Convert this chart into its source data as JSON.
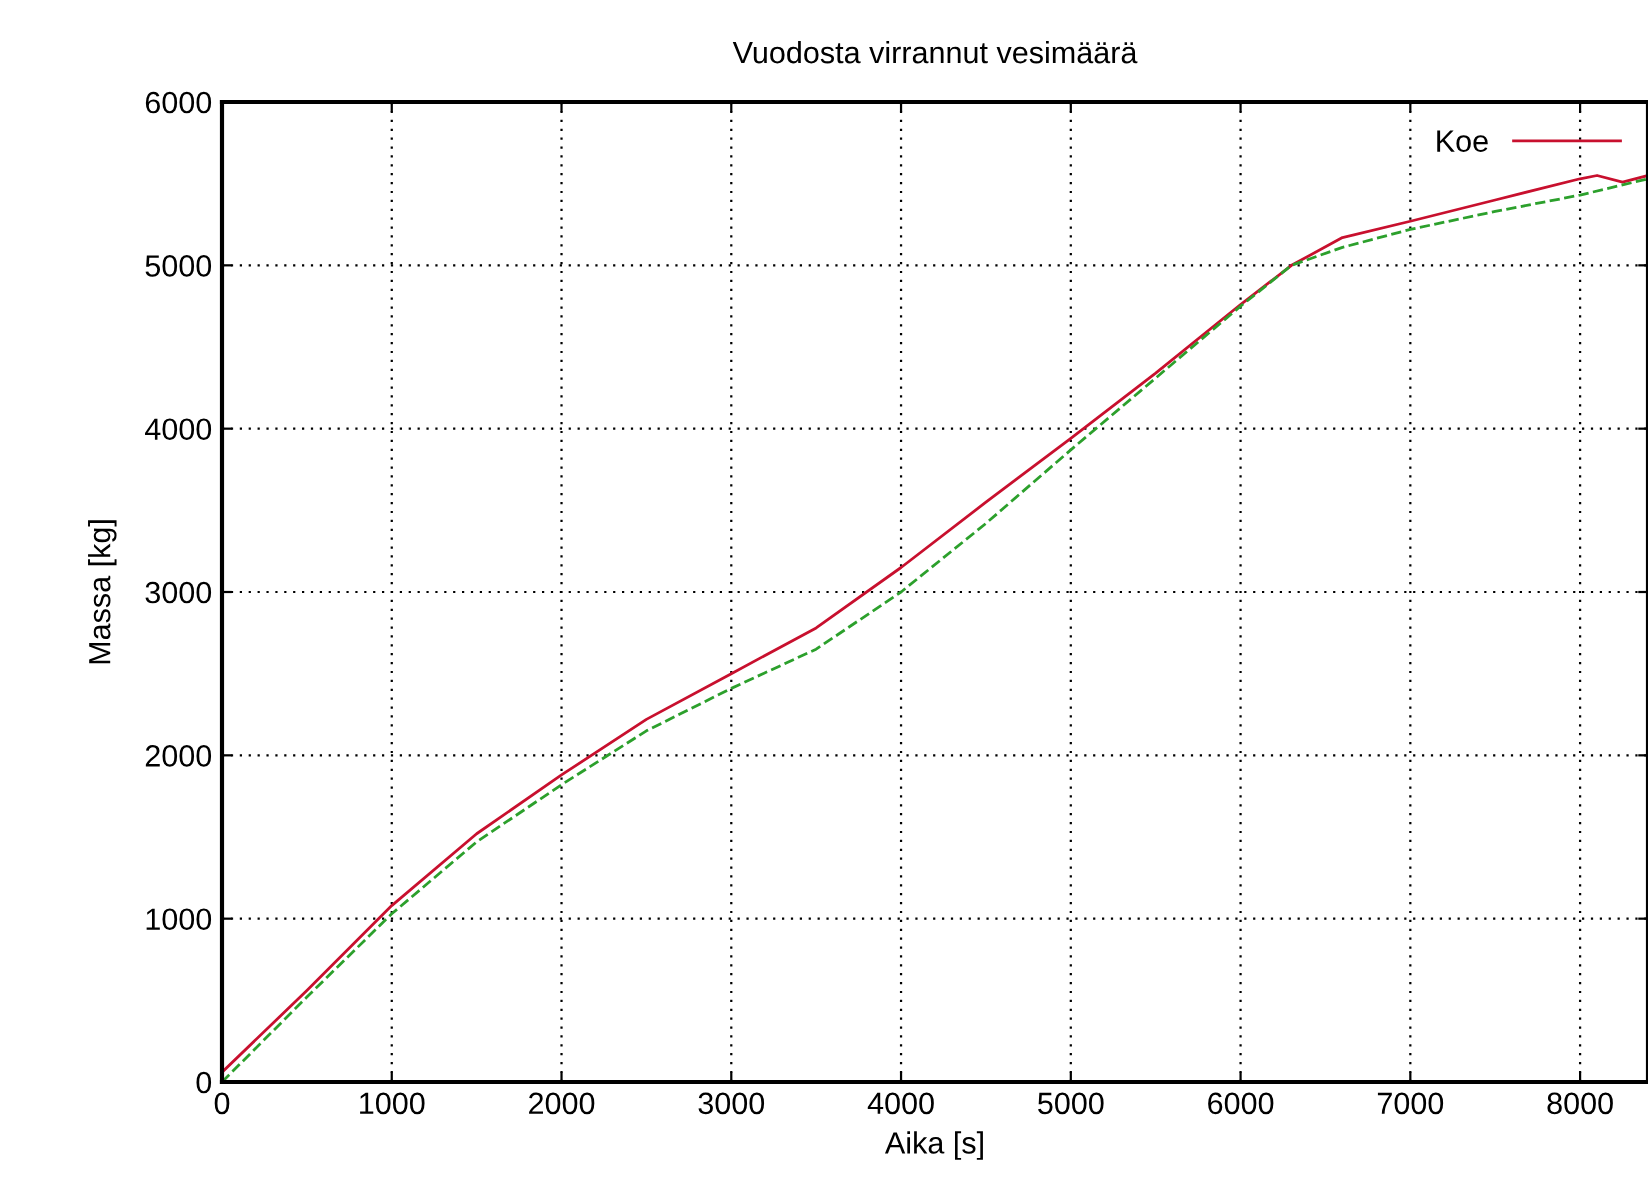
{
  "chart_data": {
    "type": "line",
    "title": "Vuodosta virrannut vesimäärä",
    "xlabel": "Aika [s]",
    "ylabel": "Massa [kg]",
    "xlim": [
      0,
      8400
    ],
    "xticks": [
      0,
      1000,
      2000,
      3000,
      4000,
      5000,
      6000,
      7000,
      8000
    ],
    "ylim": [
      0,
      6000
    ],
    "yticks": [
      0,
      1000,
      2000,
      3000,
      4000,
      5000,
      6000
    ],
    "grid": true,
    "legend": "top right",
    "series": [
      {
        "name": "Koe",
        "color": "#c8102e",
        "line_style": "solid",
        "x": [
          0,
          500,
          1000,
          1500,
          2000,
          2500,
          3000,
          3500,
          4000,
          4500,
          5000,
          5500,
          6000,
          6300,
          6600,
          7000,
          7500,
          8000,
          8100,
          8250,
          8400
        ],
        "values": [
          60,
          560,
          1080,
          1520,
          1880,
          2220,
          2500,
          2780,
          3150,
          3550,
          3940,
          4340,
          4760,
          5000,
          5170,
          5270,
          5400,
          5530,
          5550,
          5510,
          5550
        ]
      },
      {
        "color": "#2ca02c",
        "line_style": "dashed",
        "x": [
          0,
          500,
          1000,
          1500,
          2000,
          2500,
          3000,
          3500,
          4000,
          4500,
          5000,
          5500,
          6000,
          6300,
          6600,
          7000,
          7500,
          8000,
          8400
        ],
        "values": [
          0,
          520,
          1030,
          1470,
          1820,
          2150,
          2410,
          2650,
          3000,
          3420,
          3870,
          4310,
          4750,
          5000,
          5110,
          5220,
          5330,
          5430,
          5530
        ]
      }
    ]
  }
}
